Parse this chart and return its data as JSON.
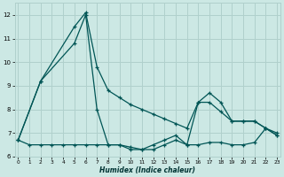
{
  "xlabel": "Humidex (Indice chaleur)",
  "bg_color": "#cce8e4",
  "grid_color": "#b0d0cc",
  "line_color": "#005555",
  "series": [
    {
      "x": [
        0,
        1,
        2,
        3,
        4,
        5,
        6,
        7,
        8,
        9,
        10,
        11,
        12,
        13,
        14,
        15,
        16,
        17,
        18,
        19,
        20,
        21,
        22,
        23
      ],
      "y": [
        6.7,
        6.5,
        6.5,
        6.5,
        6.5,
        6.5,
        6.5,
        6.5,
        6.5,
        6.5,
        6.4,
        6.3,
        6.3,
        6.5,
        6.7,
        6.5,
        6.5,
        6.6,
        6.6,
        6.5,
        6.5,
        6.6,
        7.2,
        7.0
      ]
    },
    {
      "x": [
        0,
        2,
        5,
        6,
        7,
        8,
        9,
        10,
        11,
        12,
        13,
        14,
        15,
        16,
        17,
        18,
        19,
        20,
        21,
        22,
        23
      ],
      "y": [
        6.7,
        9.2,
        10.8,
        12.0,
        8.0,
        6.5,
        6.5,
        6.3,
        6.3,
        6.5,
        6.7,
        6.9,
        6.5,
        8.3,
        8.7,
        8.3,
        7.5,
        7.5,
        7.5,
        7.2,
        6.9
      ]
    },
    {
      "x": [
        0,
        2,
        5,
        6,
        7,
        8,
        9,
        10,
        11,
        12,
        13,
        14,
        15,
        16,
        17,
        18,
        19,
        20,
        21,
        22,
        23
      ],
      "y": [
        6.7,
        9.2,
        11.5,
        12.1,
        9.8,
        8.8,
        8.5,
        8.2,
        8.0,
        7.8,
        7.6,
        7.4,
        7.2,
        8.3,
        8.3,
        7.9,
        7.5,
        7.5,
        7.5,
        7.2,
        6.9
      ]
    }
  ],
  "xlim": [
    0,
    23
  ],
  "ylim": [
    6.0,
    12.5
  ],
  "yticks": [
    6,
    7,
    8,
    9,
    10,
    11,
    12
  ],
  "xticks": [
    0,
    1,
    2,
    3,
    4,
    5,
    6,
    7,
    8,
    9,
    10,
    11,
    12,
    13,
    14,
    15,
    16,
    17,
    18,
    19,
    20,
    21,
    22,
    23
  ]
}
